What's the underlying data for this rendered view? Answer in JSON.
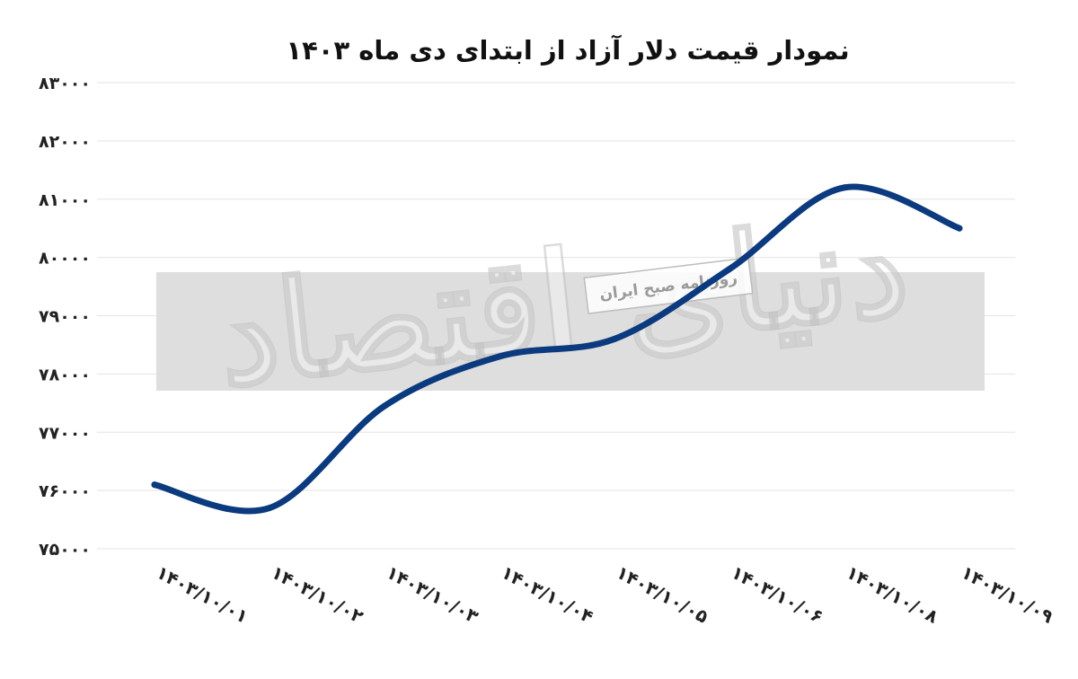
{
  "colors": {
    "line": "#0b3a7e",
    "watermark_band": "#dedede"
  },
  "watermark": {
    "logo_text": "دنیای اقتصاد",
    "subtitle": "روزنامه صبح ایران"
  },
  "chart_data": {
    "type": "line",
    "title": "نمودار قیمت دلار آزاد از ابتدای دی ماه ۱۴۰۳",
    "xlabel": "",
    "ylabel": "",
    "categories": [
      "۱۴۰۳/۱۰/۰۱",
      "۱۴۰۳/۱۰/۰۲",
      "۱۴۰۳/۱۰/۰۳",
      "۱۴۰۳/۱۰/۰۴",
      "۱۴۰۳/۱۰/۰۵",
      "۱۴۰۳/۱۰/۰۶",
      "۱۴۰۳/۱۰/۰۸",
      "۱۴۰۳/۱۰/۰۹"
    ],
    "series": [
      {
        "values": [
          76100,
          75700,
          77450,
          78300,
          78600,
          79800,
          81200,
          80500
        ]
      }
    ],
    "ylim": [
      75000,
      83000
    ],
    "yticks": [
      75000,
      76000,
      77000,
      78000,
      79000,
      80000,
      81000,
      82000,
      83000
    ],
    "ytick_labels": [
      "۷۵۰۰۰",
      "۷۶۰۰۰",
      "۷۷۰۰۰",
      "۷۸۰۰۰",
      "۷۹۰۰۰",
      "۸۰۰۰۰",
      "۸۱۰۰۰",
      "۸۲۰۰۰",
      "۸۳۰۰۰"
    ],
    "grid": true,
    "legend": "none",
    "smooth": true
  }
}
